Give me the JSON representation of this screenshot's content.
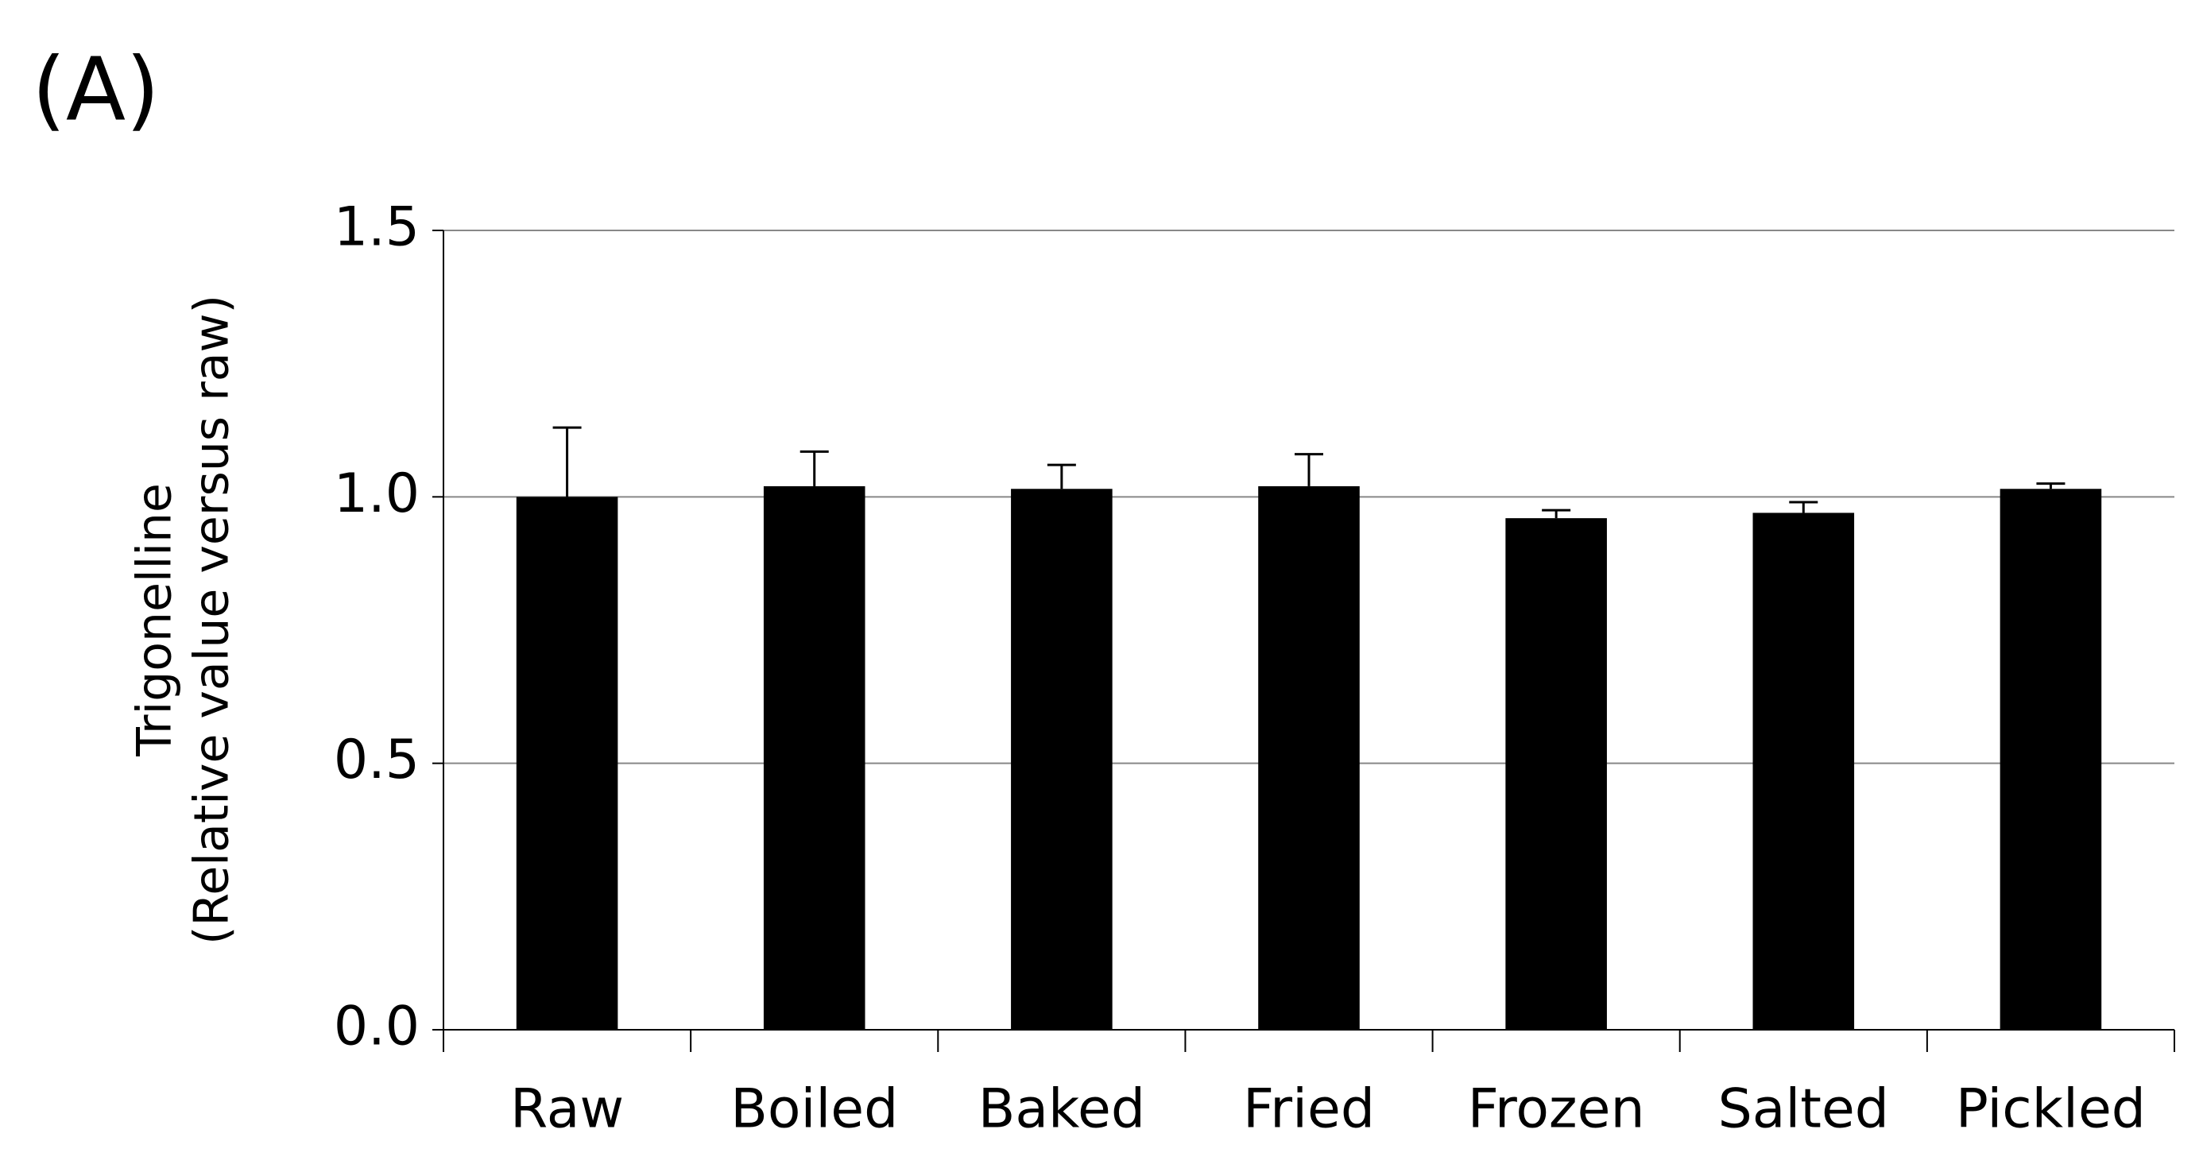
{
  "chart_data": {
    "type": "bar",
    "title": "(A)",
    "y_label": [
      "Trigonelline",
      "(Relative value versus raw)"
    ],
    "categories": [
      "Raw",
      "Boiled",
      "Baked",
      "Fried",
      "Frozen",
      "Salted",
      "Pickled"
    ],
    "values": [
      1.0,
      1.02,
      1.015,
      1.02,
      0.96,
      0.97,
      1.015
    ],
    "errors": [
      0.13,
      0.065,
      0.045,
      0.06,
      0.015,
      0.02,
      0.01
    ],
    "color": "#000000",
    "ylim": [
      0,
      1.5
    ],
    "yticks": [
      {
        "value": 0,
        "label": "0.0"
      },
      0.5,
      {
        "value": 1,
        "label": "1.0"
      },
      1.5
    ],
    "grid": true
  }
}
